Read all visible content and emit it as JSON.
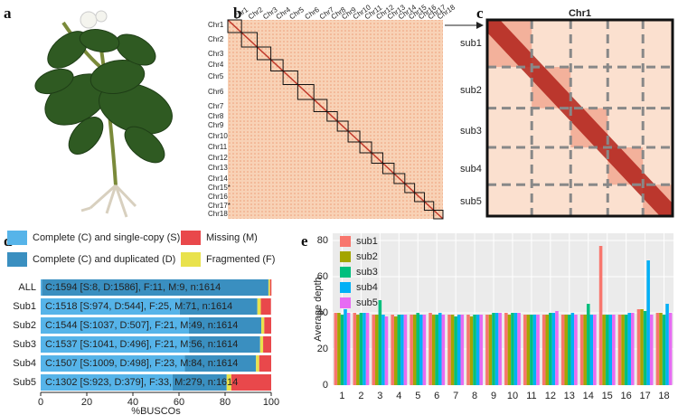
{
  "panel_labels": [
    "a",
    "b",
    "c",
    "d",
    "e"
  ],
  "panel_b": {
    "column_labels": [
      "Chr1",
      "Chr2",
      "Chr3",
      "Chr4",
      "Chr5",
      "Chr6",
      "Chr7",
      "Chr8",
      "Chr9",
      "Chr10",
      "Chr11",
      "Chr12",
      "Chr13",
      "Chr14",
      "Chr15",
      "Chr16",
      "Chr17",
      "Chr18"
    ],
    "row_labels": [
      "Chr1",
      "Chr2",
      "Chr3",
      "Chr4",
      "Chr5",
      "Chr6",
      "Chr7",
      "Chr8",
      "Chr9",
      "Chr10",
      "Chr11",
      "Chr12",
      "Chr13",
      "Chr14",
      "Chr15*",
      "Chr16",
      "Chr17*",
      "Chr18"
    ]
  },
  "panel_c": {
    "title": "Chr1",
    "row_labels": [
      "sub1",
      "sub2",
      "sub3",
      "sub4",
      "sub5"
    ]
  },
  "chart_data": [
    {
      "type": "bar",
      "orientation": "horizontal",
      "stacked": true,
      "categories": [
        "ALL",
        "Sub1",
        "Sub2",
        "Sub3",
        "Sub4",
        "Sub5"
      ],
      "series": [
        {
          "name": "Complete (C) and single-copy (S)",
          "color": "#56b4e9",
          "values": [
            0.5,
            60.3,
            64.3,
            64.5,
            62.5,
            57.2
          ]
        },
        {
          "name": "Complete (C) and duplicated (D)",
          "color": "#3a8fc0",
          "values": [
            98.3,
            33.7,
            31.4,
            30.7,
            30.9,
            23.5
          ]
        },
        {
          "name": "Fragmented (F)",
          "color": "#e9e24c",
          "values": [
            0.7,
            1.5,
            1.3,
            1.3,
            1.4,
            2.0
          ]
        },
        {
          "name": "Missing (M)",
          "color": "#e9484b",
          "values": [
            0.6,
            4.4,
            3.0,
            3.5,
            5.2,
            17.3
          ]
        }
      ],
      "bar_labels": [
        "C:1594 [S:8, D:1586], F:11, M:9, n:1614",
        "C:1518 [S:974, D:544], F:25, M:71, n:1614",
        "C:1544 [S:1037, D:507], F:21, M:49, n:1614",
        "C:1537 [S:1041, D:496], F:21, M:56, n:1614",
        "C:1507 [S:1009, D:498], F:23, M:84, n:1614",
        "C:1302 [S:923, D:379], F:33, M:279, n:1614"
      ],
      "xlabel": "%BUSCOs",
      "xlim": [
        0,
        100
      ],
      "xticks": [
        0,
        20,
        40,
        60,
        80,
        100
      ],
      "legend": "top"
    },
    {
      "type": "bar",
      "orientation": "vertical",
      "stacked": false,
      "categories": [
        "1",
        "2",
        "3",
        "4",
        "5",
        "6",
        "7",
        "8",
        "9",
        "10",
        "11",
        "12",
        "13",
        "14",
        "15",
        "16",
        "17",
        "18"
      ],
      "series": [
        {
          "name": "sub1",
          "color": "#f8766d",
          "values": [
            40,
            40,
            39,
            39,
            39,
            40,
            39,
            39,
            39,
            40,
            39,
            39,
            39,
            39,
            77,
            39,
            42,
            40
          ]
        },
        {
          "name": "sub2",
          "color": "#a3a500",
          "values": [
            40,
            39,
            39,
            38,
            39,
            39,
            39,
            38,
            39,
            39,
            39,
            39,
            39,
            39,
            39,
            39,
            42,
            40
          ]
        },
        {
          "name": "sub3",
          "color": "#00bf7d",
          "values": [
            39,
            40,
            47,
            39,
            40,
            39,
            38,
            39,
            40,
            40,
            39,
            40,
            39,
            45,
            39,
            39,
            41,
            39
          ]
        },
        {
          "name": "sub4",
          "color": "#00b0f6",
          "values": [
            42,
            40,
            39,
            39,
            39,
            40,
            39,
            39,
            40,
            40,
            39,
            40,
            40,
            39,
            39,
            40,
            69,
            45
          ]
        },
        {
          "name": "sub5",
          "color": "#e76bf3",
          "values": [
            40,
            40,
            38,
            39,
            39,
            39,
            39,
            39,
            40,
            40,
            39,
            41,
            39,
            39,
            39,
            40,
            39,
            40
          ]
        }
      ],
      "ylabel": "Average depth",
      "ylim": [
        0,
        84
      ],
      "yticks": [
        0,
        20,
        40,
        60,
        80
      ],
      "grid": true,
      "legend": "top-left"
    }
  ]
}
